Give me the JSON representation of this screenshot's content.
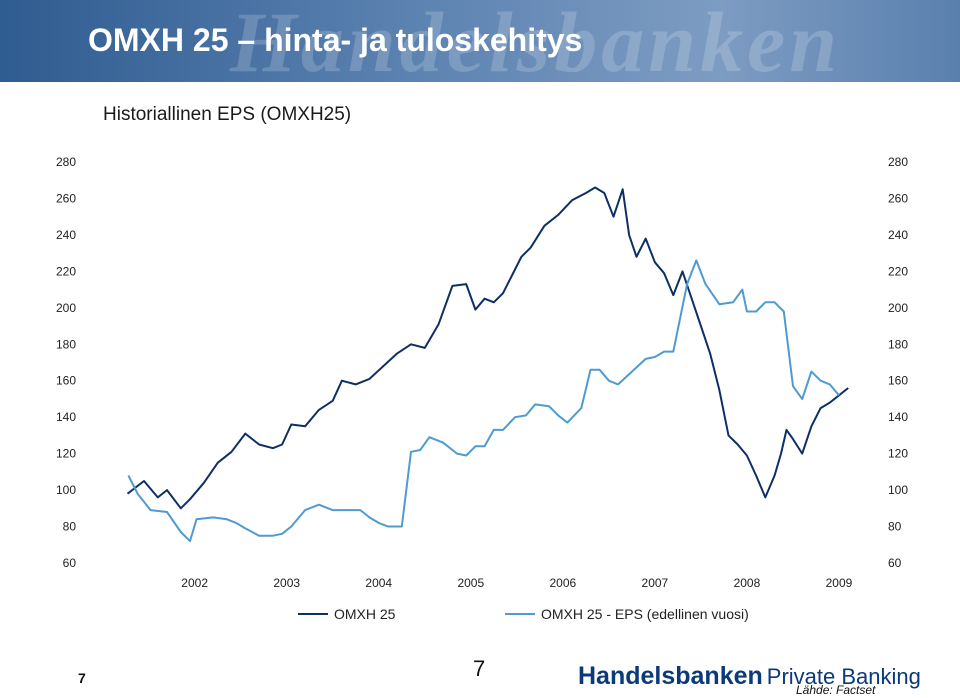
{
  "header": {
    "title": "OMXH 25 – hinta- ja tuloskehitys",
    "watermark": "Handelsbanken"
  },
  "chart_subtitle": "Historiallinen EPS (OMXH25)",
  "colors": {
    "header_bg": "#3b6699",
    "omxh25": "#0d2f66",
    "eps": "#4f9bcf",
    "brand": "#0b3a7a"
  },
  "chart_data": {
    "type": "line",
    "ylim": [
      60,
      280
    ],
    "yticks": [
      60,
      80,
      100,
      120,
      140,
      160,
      180,
      200,
      220,
      240,
      260,
      280
    ],
    "x_tick_labels": [
      "2002",
      "2003",
      "2004",
      "2005",
      "2006",
      "2007",
      "2008",
      "2009"
    ],
    "xlim": [
      2001.45,
      2009.75
    ],
    "grid": false,
    "legend_position": "bottom",
    "series": [
      {
        "name": "OMXH 25",
        "color": "#0d2f66",
        "x": [
          2001.77,
          2001.95,
          2002.1,
          2002.2,
          2002.35,
          2002.45,
          2002.6,
          2002.75,
          2002.9,
          2003.05,
          2003.2,
          2003.35,
          2003.45,
          2003.55,
          2003.7,
          2003.85,
          2004.0,
          2004.1,
          2004.25,
          2004.4,
          2004.55,
          2004.7,
          2004.85,
          2005.0,
          2005.15,
          2005.3,
          2005.45,
          2005.55,
          2005.65,
          2005.75,
          2005.85,
          2005.95,
          2006.05,
          2006.15,
          2006.3,
          2006.45,
          2006.6,
          2006.75,
          2006.85,
          2006.95,
          2007.05,
          2007.15,
          2007.22,
          2007.3,
          2007.4,
          2007.5,
          2007.6,
          2007.7,
          2007.8,
          2007.9,
          2008.0,
          2008.1,
          2008.2,
          2008.3,
          2008.4,
          2008.5,
          2008.6,
          2008.7,
          2008.8,
          2008.87,
          2008.93,
          2009.0,
          2009.1,
          2009.2,
          2009.3,
          2009.4,
          2009.5,
          2009.6
        ],
        "values": [
          98,
          105,
          96,
          100,
          90,
          95,
          104,
          115,
          121,
          131,
          125,
          123,
          125,
          136,
          135,
          144,
          149,
          160,
          158,
          161,
          168,
          175,
          180,
          178,
          191,
          212,
          213,
          199,
          205,
          203,
          208,
          218,
          228,
          233,
          245,
          251,
          259,
          263,
          266,
          263,
          250,
          265,
          240,
          228,
          238,
          225,
          219,
          207,
          220,
          205,
          190,
          175,
          155,
          130,
          125,
          119,
          108,
          96,
          108,
          120,
          133,
          128,
          120,
          135,
          145,
          148,
          152,
          156
        ]
      },
      {
        "name": "OMXH 25 - EPS (edellinen vuosi)",
        "color": "#4f9bcf",
        "x": [
          2001.78,
          2001.88,
          2002.02,
          2002.2,
          2002.35,
          2002.45,
          2002.52,
          2002.7,
          2002.85,
          2002.95,
          2003.05,
          2003.2,
          2003.35,
          2003.45,
          2003.55,
          2003.7,
          2003.85,
          2004.0,
          2004.1,
          2004.3,
          2004.4,
          2004.5,
          2004.6,
          2004.75,
          2004.85,
          2004.95,
          2005.05,
          2005.2,
          2005.35,
          2005.45,
          2005.55,
          2005.65,
          2005.75,
          2005.85,
          2005.98,
          2006.1,
          2006.2,
          2006.35,
          2006.45,
          2006.55,
          2006.7,
          2006.8,
          2006.9,
          2007.0,
          2007.1,
          2007.25,
          2007.4,
          2007.5,
          2007.6,
          2007.7,
          2007.85,
          2007.95,
          2008.05,
          2008.2,
          2008.35,
          2008.45,
          2008.5,
          2008.6,
          2008.7,
          2008.8,
          2008.9,
          2009.0,
          2009.1,
          2009.2,
          2009.3,
          2009.4,
          2009.5
        ],
        "values": [
          108,
          98,
          89,
          88,
          77,
          72,
          84,
          85,
          84,
          82,
          79,
          75,
          75,
          76,
          80,
          89,
          92,
          89,
          89,
          89,
          85,
          82,
          80,
          80,
          121,
          122,
          129,
          126,
          120,
          119,
          124,
          124,
          133,
          133,
          140,
          141,
          147,
          146,
          141,
          137,
          145,
          166,
          166,
          160,
          158,
          165,
          172,
          173,
          176,
          176,
          213,
          226,
          213,
          202,
          203,
          210,
          198,
          198,
          203,
          203,
          198,
          157,
          150,
          165,
          160,
          158,
          152
        ]
      }
    ]
  },
  "legend": {
    "items": [
      {
        "label": "OMXH 25"
      },
      {
        "label": "OMXH 25 - EPS (edellinen vuosi)"
      }
    ]
  },
  "footer": {
    "page_number_left": "7",
    "page_number_center": "7",
    "brand": "Handelsbanken",
    "brand_sub": "Private Banking",
    "source": "Lähde: Factset"
  }
}
